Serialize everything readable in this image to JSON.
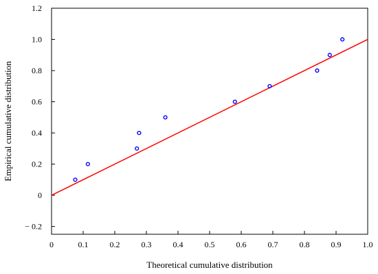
{
  "chart_data": {
    "type": "scatter",
    "title": "",
    "xlabel": "Theoretical cumulative distribution",
    "ylabel": "Empirical cumulative distribution",
    "xlim": [
      0,
      1.0
    ],
    "ylim": [
      -0.25,
      1.2
    ],
    "x_ticks": [
      {
        "value": 0,
        "label": "0"
      },
      {
        "value": 0.1,
        "label": "0.1"
      },
      {
        "value": 0.2,
        "label": "0.2"
      },
      {
        "value": 0.3,
        "label": "0.3"
      },
      {
        "value": 0.4,
        "label": "0.4"
      },
      {
        "value": 0.5,
        "label": "0.5"
      },
      {
        "value": 0.6,
        "label": "0.6"
      },
      {
        "value": 0.7,
        "label": "0.7"
      },
      {
        "value": 0.8,
        "label": "0.8"
      },
      {
        "value": 0.9,
        "label": "0.9"
      },
      {
        "value": 1.0,
        "label": "1.0"
      }
    ],
    "y_ticks": [
      {
        "value": -0.2,
        "label": "− 0.2"
      },
      {
        "value": 0,
        "label": "0"
      },
      {
        "value": 0.2,
        "label": "0.2"
      },
      {
        "value": 0.4,
        "label": "0.4"
      },
      {
        "value": 0.6,
        "label": "0.6"
      },
      {
        "value": 0.8,
        "label": "0.8"
      },
      {
        "value": 1.0,
        "label": "1.0"
      },
      {
        "value": 1.2,
        "label": "1.2"
      }
    ],
    "grid": false,
    "series": [
      {
        "kind": "points",
        "marker": "open-circle",
        "color": "#0000ff",
        "points": [
          {
            "x": 0.075,
            "y": 0.1
          },
          {
            "x": 0.115,
            "y": 0.2
          },
          {
            "x": 0.27,
            "y": 0.3
          },
          {
            "x": 0.277,
            "y": 0.4
          },
          {
            "x": 0.36,
            "y": 0.5
          },
          {
            "x": 0.58,
            "y": 0.6
          },
          {
            "x": 0.69,
            "y": 0.7
          },
          {
            "x": 0.84,
            "y": 0.8
          },
          {
            "x": 0.88,
            "y": 0.9
          },
          {
            "x": 0.92,
            "y": 1.0
          }
        ]
      },
      {
        "kind": "line",
        "color": "#ff0000",
        "points": [
          {
            "x": 0,
            "y": 0
          },
          {
            "x": 1.0,
            "y": 1.0
          }
        ]
      }
    ]
  }
}
